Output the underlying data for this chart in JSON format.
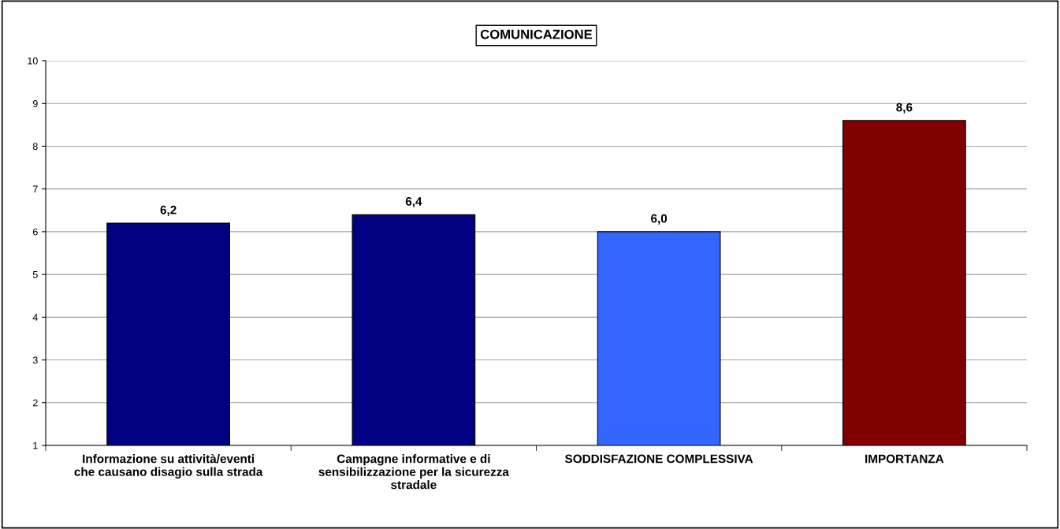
{
  "chart_data": {
    "type": "bar",
    "title": "COMUNICAZIONE",
    "categories": [
      "Informazione su attività/eventi\nche causano disagio sulla strada",
      "Campagne informative e di\nsensibilizzazione per la sicurezza\nstradale",
      "SODDISFAZIONE COMPLESSIVA",
      "IMPORTANZA"
    ],
    "values": [
      6.2,
      6.4,
      6.0,
      8.6
    ],
    "colors": [
      "#000080",
      "#000080",
      "#3366ff",
      "#800000"
    ],
    "value_labels": [
      "6,2",
      "6,4",
      "6,0",
      "8,6"
    ],
    "ylim": [
      1,
      10
    ],
    "yticks": [
      1,
      2,
      3,
      4,
      5,
      6,
      7,
      8,
      9,
      10
    ],
    "grid": "y"
  }
}
